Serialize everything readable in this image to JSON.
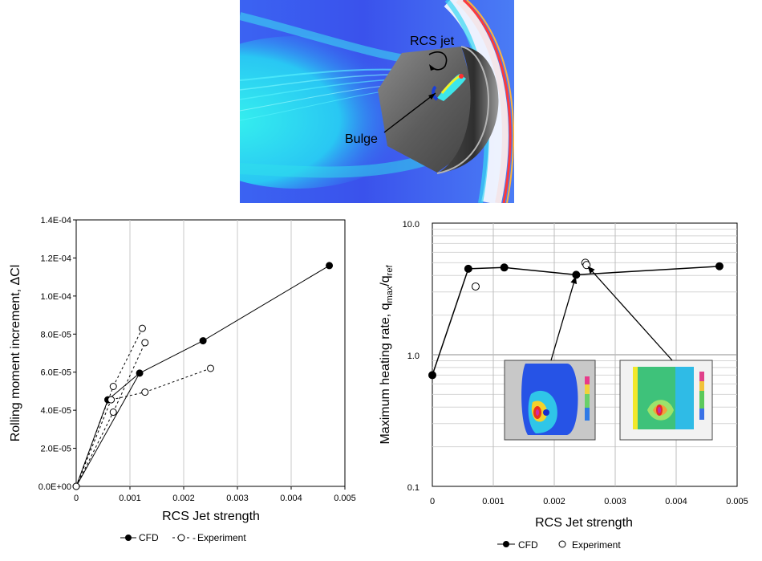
{
  "figure": {
    "annotations": {
      "jet": "RCS jet",
      "bulge": "Bulge"
    },
    "colors": {
      "flow_blue": "#3a59f0",
      "flow_cyan": "#2fe7f0",
      "capsule_gray": "#6c6c6c",
      "shock_red": "#ff2a2a"
    },
    "icons": {
      "rotation": "curved-rotation-arrow-icon"
    }
  },
  "chart_data": [
    {
      "type": "line",
      "title": "",
      "xlabel": "RCS Jet strength",
      "ylabel": "Rolling moment increment, ΔCl",
      "xlim": [
        0,
        0.005
      ],
      "ylim": [
        0,
        0.00014
      ],
      "xticks": [
        0,
        0.001,
        0.002,
        0.003,
        0.004,
        0.005
      ],
      "xtick_labels": [
        "0",
        "0.001",
        "0.002",
        "0.003",
        "0.004",
        "0.005"
      ],
      "yticks": [
        0,
        2e-05,
        4e-05,
        6e-05,
        8e-05,
        0.0001,
        0.00012,
        0.00014
      ],
      "ytick_labels": [
        "0.0E+00",
        "2.0E-05",
        "4.0E-05",
        "6.0E-05",
        "8.0E-05",
        "1.0E-04",
        "1.2E-04",
        "1.4E-04"
      ],
      "grid": "vertical",
      "legend_position": "bottom",
      "series": [
        {
          "name": "CFD",
          "style": "solid",
          "marker": "filled-circle",
          "x": [
            0,
            0.00059,
            0.00118,
            0.00236,
            0.00471
          ],
          "y": [
            0,
            4.55e-05,
            5.95e-05,
            7.65e-05,
            0.000116
          ],
          "edges": [
            [
              0,
              1
            ],
            [
              1,
              2
            ],
            [
              2,
              3
            ],
            [
              3,
              4
            ],
            [
              0,
              2
            ]
          ]
        },
        {
          "name": "Experiment",
          "style": "dashed",
          "marker": "open-circle",
          "x": [
            0,
            0.00069,
            0.00123,
            0.00069,
            0.00128,
            0.00065,
            0.00128,
            0.0025
          ],
          "y": [
            0,
            5.25e-05,
            8.3e-05,
            3.9e-05,
            7.55e-05,
            4.55e-05,
            4.95e-05,
            6.2e-05
          ],
          "edges": [
            [
              0,
              1
            ],
            [
              1,
              2
            ],
            [
              0,
              3
            ],
            [
              3,
              4
            ],
            [
              0,
              5
            ],
            [
              5,
              6
            ],
            [
              6,
              7
            ]
          ]
        }
      ]
    },
    {
      "type": "line",
      "title": "",
      "xlabel": "RCS Jet strength",
      "ylabel": "Maximum heating rate, q_max/q_ref",
      "ylabel_base": "Maximum heating rate, q",
      "ylabel_sub1": "max",
      "ylabel_mid": "/q",
      "ylabel_sub2": "ref",
      "yscale": "log",
      "xlim": [
        0,
        0.005
      ],
      "ylim": [
        0.1,
        10
      ],
      "xticks": [
        0,
        0.001,
        0.002,
        0.003,
        0.004,
        0.005
      ],
      "xtick_labels": [
        "0",
        "0.001",
        "0.002",
        "0.003",
        "0.004",
        "0.005"
      ],
      "yticks": [
        0.1,
        1,
        10
      ],
      "ytick_labels": [
        "0.1",
        "1.0",
        "10.0"
      ],
      "grid": "both",
      "legend_position": "bottom",
      "series": [
        {
          "name": "CFD",
          "style": "solid",
          "marker": "filled-circle",
          "x": [
            0,
            0.00059,
            0.00118,
            0.00236,
            0.00471
          ],
          "y": [
            0.7,
            4.5,
            4.6,
            4.05,
            4.7
          ],
          "edges": [
            [
              0,
              1
            ],
            [
              1,
              2
            ],
            [
              2,
              3
            ],
            [
              3,
              4
            ]
          ]
        },
        {
          "name": "Experiment",
          "style": "none",
          "marker": "open-circle",
          "x": [
            0.00071,
            0.00251,
            0.00253
          ],
          "y": [
            3.3,
            5.0,
            4.8
          ],
          "edges": []
        }
      ],
      "insets": [
        {
          "name": "inset-surface-heating-map",
          "points_to": [
            0.00236,
            4.05
          ]
        },
        {
          "name": "inset-flowfield-heating-map",
          "points_to": [
            0.00253,
            4.8
          ]
        }
      ]
    }
  ]
}
